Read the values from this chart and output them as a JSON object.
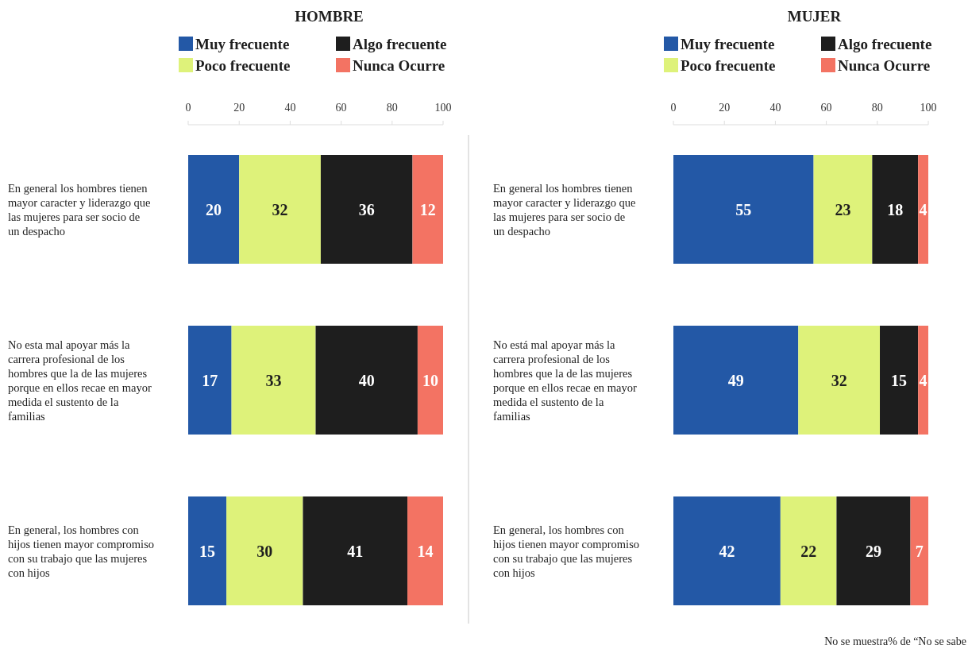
{
  "chart_data": [
    {
      "type": "bar",
      "orientation": "horizontal",
      "stacked": true,
      "title": "HOMBRE",
      "categories": [
        "En general los hombres tienen mayor caracter y liderazgo que las mujeres para ser socio de un despacho",
        "No esta mal apoyar más la carrera profesional de los hombres que la de las mujeres porque  en ellos recae en mayor medida el sustento de la familias",
        "En general, los hombres con hijos tienen mayor compromiso con su trabajo que las mujeres con hijos"
      ],
      "series": [
        {
          "name": "Muy frecuente",
          "color": "#2358a6",
          "values": [
            20,
            17,
            15
          ]
        },
        {
          "name": "Poco frecuente",
          "color": "#def27a",
          "values": [
            32,
            33,
            30
          ]
        },
        {
          "name": "Algo frecuente",
          "color": "#1e1e1e",
          "values": [
            36,
            40,
            41
          ]
        },
        {
          "name": "Nunca Ocurre",
          "color": "#f37363",
          "values": [
            12,
            10,
            14
          ]
        }
      ],
      "xlim": [
        0,
        100
      ],
      "xticks": [
        0,
        20,
        40,
        60,
        80,
        100
      ],
      "data_labels": true,
      "legend": "top",
      "grid": false
    },
    {
      "type": "bar",
      "orientation": "horizontal",
      "stacked": true,
      "title": "MUJER",
      "categories": [
        "En general los hombres tienen mayor caracter y liderazgo que las mujeres para ser socio de un despacho",
        "No está mal apoyar más la carrera profesional de los hombres que la de las mujeres porque en ellos recae en mayor medida el sustento de la familias",
        "En general, los hombres con hijos tienen mayor compromiso con su trabajo que las mujeres con hijos"
      ],
      "series": [
        {
          "name": "Muy frecuente",
          "color": "#2358a6",
          "values": [
            55,
            49,
            42
          ]
        },
        {
          "name": "Poco frecuente",
          "color": "#def27a",
          "values": [
            23,
            32,
            22
          ]
        },
        {
          "name": "Algo frecuente",
          "color": "#1e1e1e",
          "values": [
            18,
            15,
            29
          ]
        },
        {
          "name": "Nunca Ocurre",
          "color": "#f37363",
          "values": [
            4,
            4,
            7
          ]
        }
      ],
      "xlim": [
        0,
        100
      ],
      "xticks": [
        0,
        20,
        40,
        60,
        80,
        100
      ],
      "data_labels": true,
      "legend": "top",
      "grid": false,
      "annotations": [
        "No se muestra% de “No se sabe"
      ]
    }
  ]
}
